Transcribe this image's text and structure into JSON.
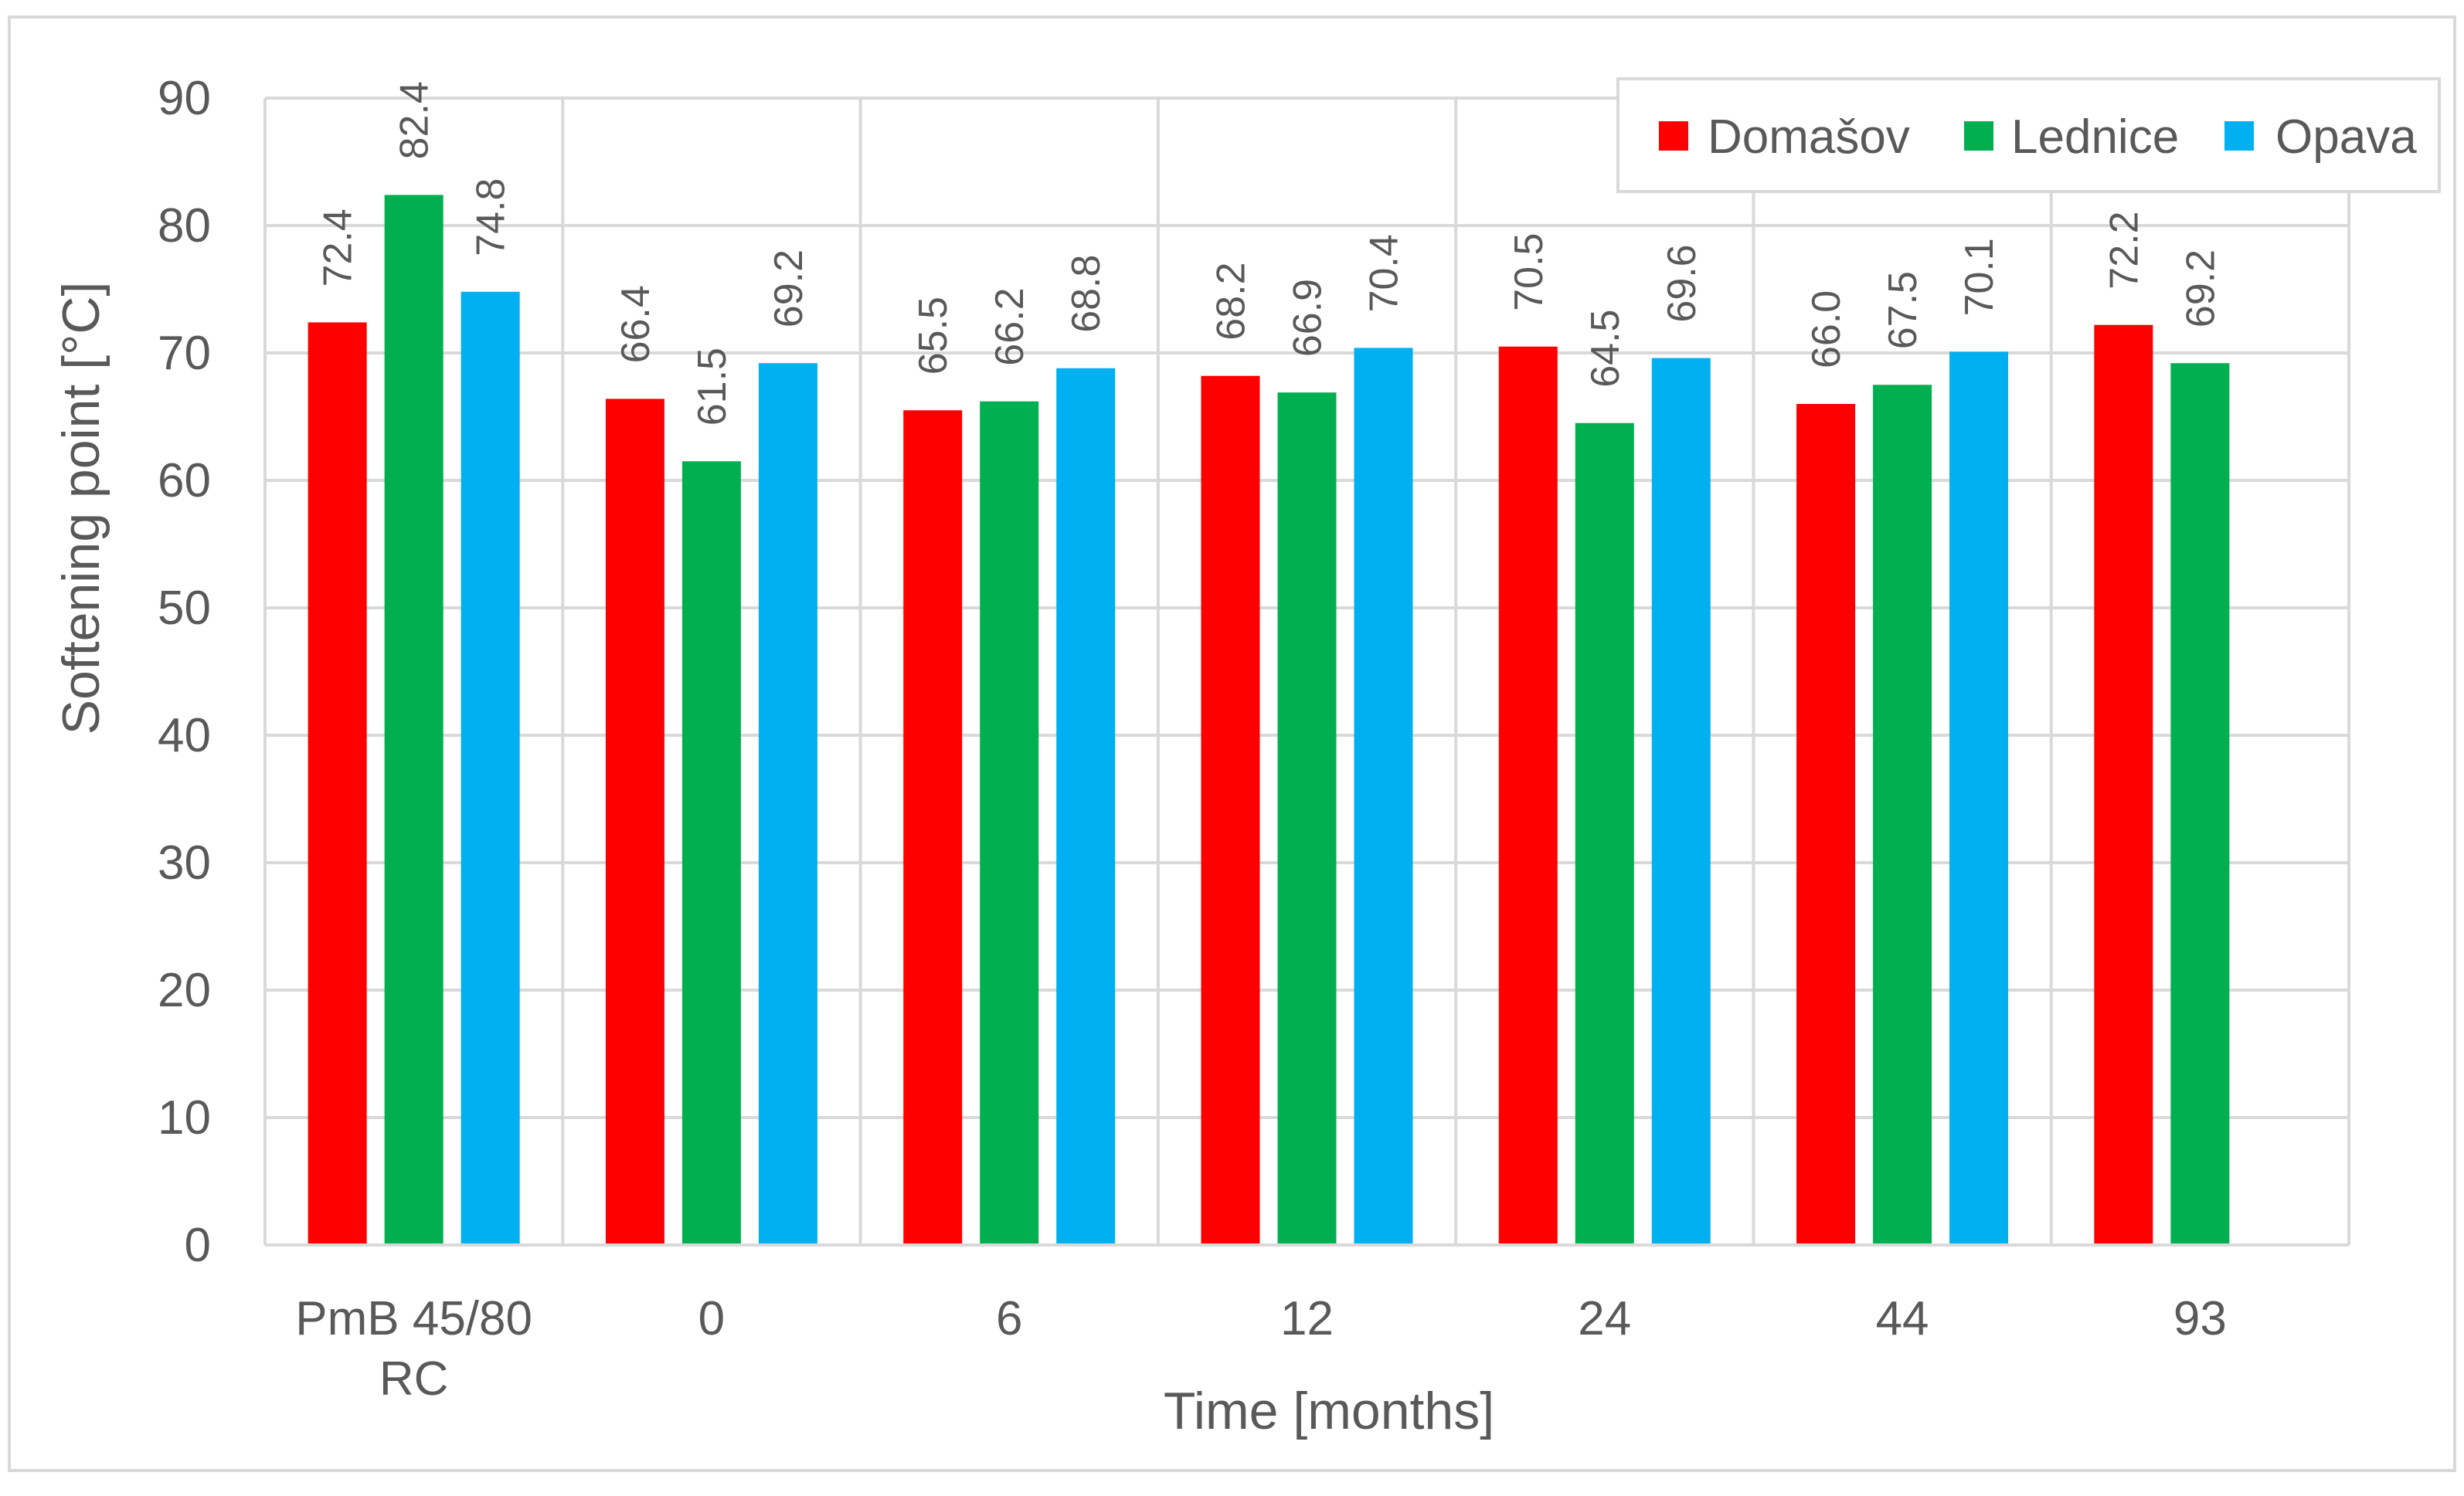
{
  "chart_data": {
    "type": "bar",
    "title": "",
    "xlabel": "Time [months]",
    "ylabel": "Softening point [°C]",
    "ylim": [
      0,
      90
    ],
    "yticks": [
      0,
      10,
      20,
      30,
      40,
      50,
      60,
      70,
      80,
      90
    ],
    "categories": [
      [
        "PmB 45/80",
        "RC"
      ],
      [
        "0"
      ],
      [
        "6"
      ],
      [
        "12"
      ],
      [
        "24"
      ],
      [
        "44"
      ],
      [
        "93"
      ]
    ],
    "series": [
      {
        "name": "Domašov",
        "color": "#FF0000",
        "values": [
          72.4,
          66.4,
          65.5,
          68.2,
          70.5,
          66.0,
          72.2
        ]
      },
      {
        "name": "Lednice",
        "color": "#00B050",
        "values": [
          82.4,
          61.5,
          66.2,
          66.9,
          64.5,
          67.5,
          69.2
        ]
      },
      {
        "name": "Opava",
        "color": "#00B0F0",
        "values": [
          74.8,
          69.2,
          68.8,
          70.4,
          69.6,
          70.1,
          null
        ]
      }
    ],
    "grid": true,
    "legend_position": "top-right",
    "data_labels": true
  }
}
